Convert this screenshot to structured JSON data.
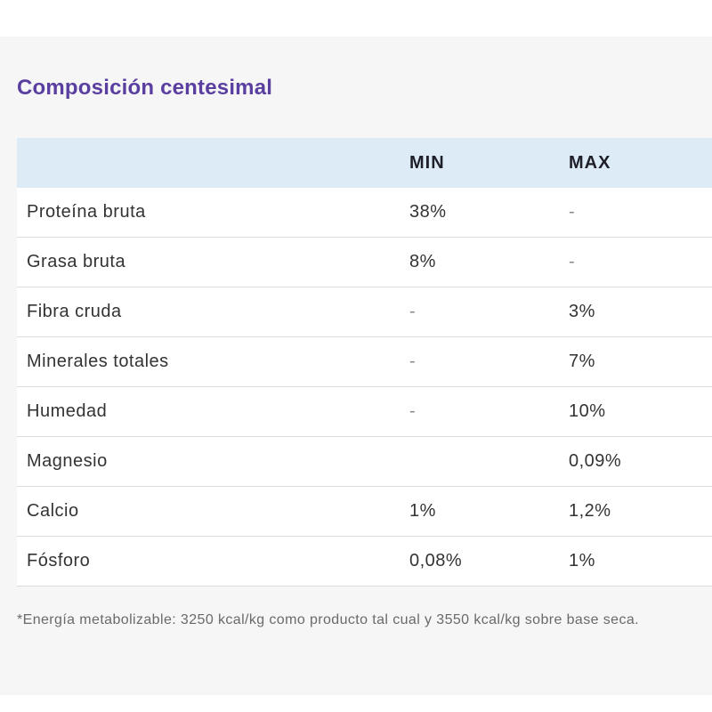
{
  "section": {
    "title": "Composición centesimal"
  },
  "table": {
    "headers": {
      "name": "",
      "min": "MIN",
      "max": "MAX"
    },
    "rows": [
      {
        "name": "Proteína bruta",
        "min": "38%",
        "max": "-"
      },
      {
        "name": "Grasa bruta",
        "min": "8%",
        "max": "-"
      },
      {
        "name": "Fibra cruda",
        "min": "-",
        "max": "3%"
      },
      {
        "name": "Minerales totales",
        "min": "-",
        "max": "7%"
      },
      {
        "name": "Humedad",
        "min": "-",
        "max": "10%"
      },
      {
        "name": "Magnesio",
        "min": "",
        "max": "0,09%"
      },
      {
        "name": "Calcio",
        "min": "1%",
        "max": "1,2%"
      },
      {
        "name": "Fósforo",
        "min": "0,08%",
        "max": "1%"
      }
    ]
  },
  "footnote": "*Energía metabolizable: 3250 kcal/kg como producto tal cual y 3550 kcal/kg sobre base seca.",
  "colors": {
    "title": "#5a3fa0",
    "header_bg": "#dcebf5",
    "panel_bg": "#f6f6f6"
  }
}
